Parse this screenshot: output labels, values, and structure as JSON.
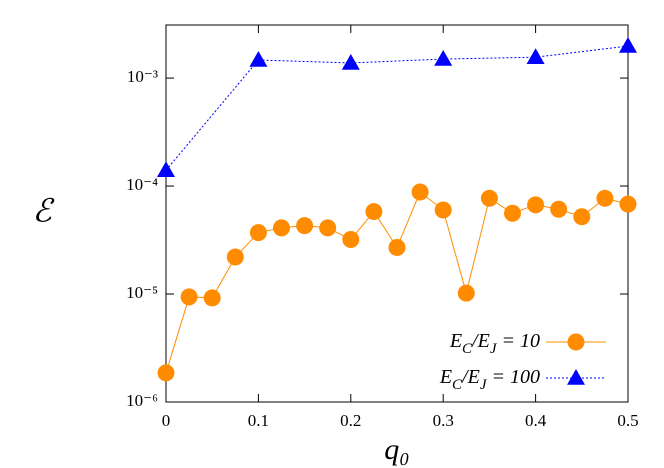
{
  "chart_data": {
    "type": "line",
    "xlabel": "q₀",
    "ylabel": "ℰ",
    "log_y": true,
    "legend": "lower right",
    "xlim": [
      0,
      0.5
    ],
    "xticks": [
      0,
      0.1,
      0.2,
      0.3,
      0.4,
      0.5
    ],
    "ylim": [
      1e-06,
      0.0031
    ],
    "yticks": [
      {
        "value": 1e-06,
        "label": "10⁻⁶"
      },
      {
        "value": 1e-05,
        "label": "10⁻⁵"
      },
      {
        "value": 0.0001,
        "label": "10⁻⁴"
      },
      {
        "value": 0.001,
        "label": "10⁻³"
      }
    ],
    "series": [
      {
        "name": "E_C/E_J = 10",
        "color": "#ff8c00",
        "marker": "circle",
        "line": "solid",
        "x": [
          0,
          0.025,
          0.05,
          0.075,
          0.1,
          0.125,
          0.15,
          0.175,
          0.2,
          0.225,
          0.25,
          0.275,
          0.3,
          0.325,
          0.35,
          0.375,
          0.4,
          0.425,
          0.45,
          0.475,
          0.5
        ],
        "values": [
          1.86e-06,
          9.4e-06,
          9.2e-06,
          2.2e-05,
          3.7e-05,
          4.1e-05,
          4.3e-05,
          4.1e-05,
          3.2e-05,
          5.8e-05,
          2.7e-05,
          8.8e-05,
          6e-05,
          1.02e-05,
          7.7e-05,
          5.6e-05,
          6.7e-05,
          6.1e-05,
          5.2e-05,
          7.7e-05,
          6.8e-05
        ]
      },
      {
        "name": "E_C/E_J = 100",
        "color": "#0000ff",
        "marker": "triangle",
        "line": "dotted",
        "x": [
          0,
          0.1,
          0.2,
          0.3,
          0.4,
          0.5
        ],
        "values": [
          0.00014,
          0.00147,
          0.00138,
          0.0015,
          0.00156,
          0.00198
        ]
      }
    ]
  }
}
